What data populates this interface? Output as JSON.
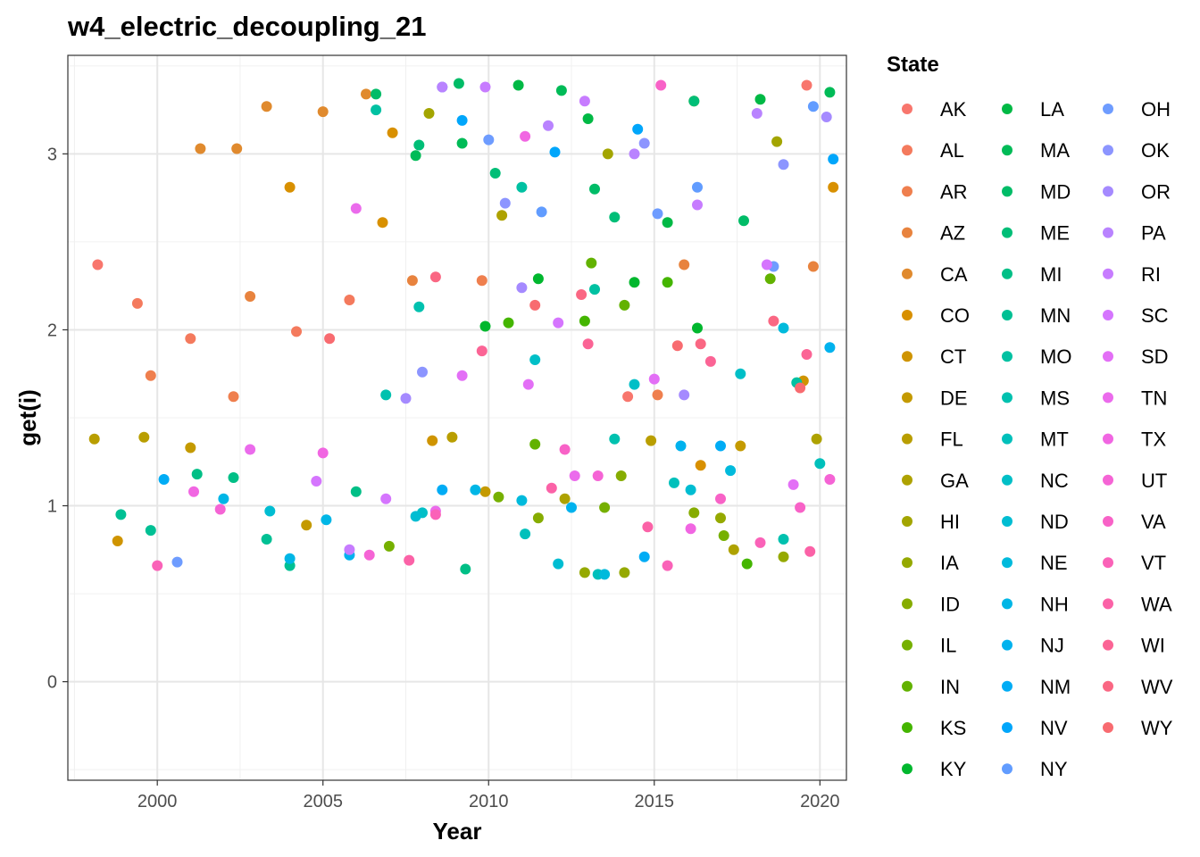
{
  "chart_data": {
    "type": "scatter",
    "title": "w4_electric_decoupling_21",
    "xlabel": "Year",
    "ylabel": "get(i)",
    "xlim": [
      1997.3,
      2020.8
    ],
    "ylim": [
      -0.56,
      3.56
    ],
    "x_ticks": [
      2000,
      2005,
      2010,
      2015,
      2020
    ],
    "y_ticks": [
      0,
      1,
      2,
      3
    ],
    "grid": true,
    "legend": {
      "title": "State",
      "placement": "right"
    },
    "series": [
      {
        "name": "AK",
        "color": "#F8766D",
        "x": [
          1998.2,
          2014.2,
          2019.6
        ],
        "y": [
          2.37,
          1.62,
          3.39
        ]
      },
      {
        "name": "AL",
        "color": "#F47A5D",
        "x": [
          1999.4,
          2001.0,
          2004.2,
          2005.8
        ],
        "y": [
          2.15,
          1.95,
          1.99,
          2.17
        ]
      },
      {
        "name": "AR",
        "color": "#EF7F4E",
        "x": [
          1999.8,
          2002.3,
          2009.8,
          2015.1
        ],
        "y": [
          1.74,
          1.62,
          2.28,
          1.63
        ]
      },
      {
        "name": "AZ",
        "color": "#E8833E",
        "x": [
          2002.8,
          2007.7,
          2015.9,
          2019.8
        ],
        "y": [
          2.19,
          2.28,
          2.37,
          2.36
        ]
      },
      {
        "name": "CA",
        "color": "#E08A2E",
        "x": [
          2001.3,
          2002.4,
          2003.3,
          2005.0,
          2006.3
        ],
        "y": [
          3.03,
          3.03,
          3.27,
          3.24,
          3.34
        ]
      },
      {
        "name": "CO",
        "color": "#D89000",
        "x": [
          2004.0,
          2006.8,
          2007.1,
          2016.4,
          2020.4
        ],
        "y": [
          2.81,
          2.61,
          3.12,
          1.23,
          2.81
        ]
      },
      {
        "name": "CT",
        "color": "#CF9400",
        "x": [
          1998.8,
          2008.3,
          2019.5
        ],
        "y": [
          0.8,
          1.37,
          1.71
        ]
      },
      {
        "name": "DE",
        "color": "#C49A00",
        "x": [
          2001.0,
          2004.5,
          2009.9,
          2017.6
        ],
        "y": [
          1.33,
          0.89,
          1.08,
          1.34
        ]
      },
      {
        "name": "FL",
        "color": "#B99E00",
        "x": [
          1998.1,
          1999.6,
          2008.9,
          2014.9
        ],
        "y": [
          1.38,
          1.39,
          1.39,
          1.37
        ]
      },
      {
        "name": "GA",
        "color": "#AEA200",
        "x": [
          2010.4,
          2012.3,
          2017.4,
          2019.9
        ],
        "y": [
          2.65,
          1.04,
          0.75,
          1.38
        ]
      },
      {
        "name": "HI",
        "color": "#A3A500",
        "x": [
          2008.2,
          2013.6,
          2016.2,
          2018.7
        ],
        "y": [
          3.23,
          3.0,
          3.3,
          3.07
        ]
      },
      {
        "name": "IA",
        "color": "#95A900",
        "x": [
          2012.9,
          2014.1,
          2017.0,
          2018.9
        ],
        "y": [
          0.62,
          0.62,
          0.93,
          0.71
        ]
      },
      {
        "name": "ID",
        "color": "#86AC00",
        "x": [
          2011.5,
          2014.0,
          2016.2
        ],
        "y": [
          0.93,
          1.17,
          0.96
        ]
      },
      {
        "name": "IL",
        "color": "#76B000",
        "x": [
          2007.0,
          2010.3,
          2013.5,
          2017.1
        ],
        "y": [
          0.77,
          1.05,
          0.99,
          0.83
        ]
      },
      {
        "name": "IN",
        "color": "#62B200",
        "x": [
          2011.4,
          2013.1,
          2014.1,
          2018.5
        ],
        "y": [
          1.35,
          2.38,
          2.14,
          2.29
        ]
      },
      {
        "name": "KS",
        "color": "#44B500",
        "x": [
          2010.6,
          2012.9,
          2015.4,
          2017.8
        ],
        "y": [
          2.04,
          2.05,
          2.27,
          0.67
        ]
      },
      {
        "name": "KY",
        "color": "#00B72E",
        "x": [
          2009.9,
          2011.5,
          2014.4,
          2016.3
        ],
        "y": [
          2.02,
          2.29,
          2.27,
          2.01
        ]
      },
      {
        "name": "LA",
        "color": "#00B945",
        "x": [
          2010.9,
          2013.0,
          2015.4,
          2018.2
        ],
        "y": [
          3.39,
          3.2,
          2.61,
          3.31
        ]
      },
      {
        "name": "MA",
        "color": "#00BB57",
        "x": [
          2007.8,
          2009.2,
          2012.2,
          2020.3
        ],
        "y": [
          2.99,
          3.06,
          3.36,
          3.35
        ]
      },
      {
        "name": "MD",
        "color": "#00BC67",
        "x": [
          2006.6,
          2009.1,
          2013.2,
          2017.7
        ],
        "y": [
          3.34,
          3.4,
          2.8,
          2.62
        ]
      },
      {
        "name": "ME",
        "color": "#00BE77",
        "x": [
          2007.9,
          2010.2,
          2013.8,
          2016.2
        ],
        "y": [
          3.05,
          2.89,
          2.64,
          3.3
        ]
      },
      {
        "name": "MI",
        "color": "#00BF86",
        "x": [
          2001.2,
          2002.3,
          2006.0,
          2009.3
        ],
        "y": [
          1.18,
          1.16,
          1.08,
          0.64
        ]
      },
      {
        "name": "MN",
        "color": "#00C094",
        "x": [
          1998.9,
          1999.8,
          2003.3,
          2004.0
        ],
        "y": [
          0.95,
          0.86,
          0.81,
          0.66
        ]
      },
      {
        "name": "MO",
        "color": "#00C1A2",
        "x": [
          2006.6,
          2011.0,
          2013.2,
          2019.3
        ],
        "y": [
          3.25,
          2.81,
          2.23,
          1.7
        ]
      },
      {
        "name": "MS",
        "color": "#00C1AF",
        "x": [
          2006.9,
          2007.9,
          2013.8,
          2018.9
        ],
        "y": [
          1.63,
          2.13,
          1.38,
          0.81
        ]
      },
      {
        "name": "MT",
        "color": "#00C0BB",
        "x": [
          2011.1,
          2013.3,
          2015.6,
          2020.0
        ],
        "y": [
          0.84,
          0.61,
          1.13,
          1.24
        ]
      },
      {
        "name": "NC",
        "color": "#00BFC7",
        "x": [
          2008.0,
          2011.4,
          2014.4,
          2017.6
        ],
        "y": [
          0.96,
          1.83,
          1.69,
          1.75
        ]
      },
      {
        "name": "ND",
        "color": "#00BDD2",
        "x": [
          2003.4,
          2007.8,
          2012.1,
          2016.1
        ],
        "y": [
          0.97,
          0.94,
          0.67,
          1.09
        ]
      },
      {
        "name": "NE",
        "color": "#00BADC",
        "x": [
          2011.0,
          2013.5,
          2017.3,
          2018.9
        ],
        "y": [
          1.03,
          0.61,
          1.2,
          2.01
        ]
      },
      {
        "name": "NH",
        "color": "#00B6E6",
        "x": [
          2002.0,
          2004.0,
          2005.1,
          2009.6
        ],
        "y": [
          1.04,
          0.7,
          0.92,
          1.09
        ]
      },
      {
        "name": "NJ",
        "color": "#00B2EE",
        "x": [
          2005.8,
          2012.5,
          2015.8,
          2020.3
        ],
        "y": [
          0.72,
          0.99,
          1.34,
          1.9
        ]
      },
      {
        "name": "NM",
        "color": "#00ACF5",
        "x": [
          2000.2,
          2008.6,
          2014.7,
          2017.0
        ],
        "y": [
          1.15,
          1.09,
          0.71,
          1.34
        ]
      },
      {
        "name": "NV",
        "color": "#00A6FB",
        "x": [
          2009.2,
          2012.0,
          2014.5,
          2020.4
        ],
        "y": [
          3.19,
          3.01,
          3.14,
          2.97
        ]
      },
      {
        "name": "NY",
        "color": "#619CFF",
        "x": [
          2008.6,
          2011.6,
          2016.3,
          2019.8
        ],
        "y": [
          3.38,
          2.67,
          2.81,
          3.27
        ]
      },
      {
        "name": "OH",
        "color": "#6E9CFF",
        "x": [
          2000.6,
          2010.0,
          2015.1,
          2018.6
        ],
        "y": [
          0.68,
          3.08,
          2.66,
          2.36
        ]
      },
      {
        "name": "OK",
        "color": "#8C95FF",
        "x": [
          2008.0,
          2010.5,
          2014.7,
          2018.9
        ],
        "y": [
          1.76,
          2.72,
          3.06,
          2.94
        ]
      },
      {
        "name": "OR",
        "color": "#A58AFF",
        "x": [
          2007.5,
          2011.0,
          2015.9,
          2020.2
        ],
        "y": [
          1.61,
          2.24,
          1.63,
          3.21
        ]
      },
      {
        "name": "PA",
        "color": "#B983FF",
        "x": [
          2008.6,
          2011.8,
          2014.4,
          2018.1
        ],
        "y": [
          3.38,
          3.16,
          3.0,
          3.23
        ]
      },
      {
        "name": "RI",
        "color": "#C77CFF",
        "x": [
          2005.8,
          2009.9,
          2012.9,
          2016.3
        ],
        "y": [
          0.75,
          3.38,
          3.3,
          2.71
        ]
      },
      {
        "name": "SC",
        "color": "#D575FE",
        "x": [
          2004.8,
          2006.9,
          2012.1,
          2018.4
        ],
        "y": [
          1.14,
          1.04,
          2.04,
          2.37
        ]
      },
      {
        "name": "SD",
        "color": "#E36FF6",
        "x": [
          2009.2,
          2011.2,
          2015.0,
          2019.2
        ],
        "y": [
          1.74,
          1.69,
          1.72,
          1.12
        ]
      },
      {
        "name": "TN",
        "color": "#EB6BEC",
        "x": [
          2002.8,
          2006.0,
          2008.4,
          2012.6
        ],
        "y": [
          1.32,
          2.69,
          0.97,
          1.17
        ]
      },
      {
        "name": "TX",
        "color": "#F166E2",
        "x": [
          2001.1,
          2005.0,
          2011.1,
          2016.1
        ],
        "y": [
          1.08,
          1.3,
          3.1,
          0.87
        ]
      },
      {
        "name": "UT",
        "color": "#F564D5",
        "x": [
          2001.9,
          2006.4,
          2013.3,
          2020.3
        ],
        "y": [
          0.98,
          0.72,
          1.17,
          1.15
        ]
      },
      {
        "name": "VA",
        "color": "#F862C7",
        "x": [
          2012.3,
          2015.2,
          2017.0,
          2019.4
        ],
        "y": [
          1.32,
          3.39,
          1.04,
          0.99
        ]
      },
      {
        "name": "VT",
        "color": "#FA62B8",
        "x": [
          2000.0,
          2008.4,
          2015.4,
          2018.2
        ],
        "y": [
          0.66,
          0.95,
          0.66,
          0.79
        ]
      },
      {
        "name": "WA",
        "color": "#FB62A7",
        "x": [
          2007.6,
          2011.9,
          2014.8,
          2019.7
        ],
        "y": [
          0.69,
          1.1,
          0.88,
          0.74
        ]
      },
      {
        "name": "WI",
        "color": "#FB6495",
        "x": [
          2009.8,
          2013.0,
          2016.7,
          2019.6
        ],
        "y": [
          1.88,
          1.92,
          1.82,
          1.86
        ]
      },
      {
        "name": "WV",
        "color": "#FA6783",
        "x": [
          2008.4,
          2012.8,
          2016.4,
          2018.6
        ],
        "y": [
          2.3,
          2.2,
          1.92,
          2.05
        ]
      },
      {
        "name": "WY",
        "color": "#F86B70",
        "x": [
          2005.2,
          2011.4,
          2015.7,
          2019.4
        ],
        "y": [
          1.95,
          2.14,
          1.91,
          1.67
        ]
      }
    ]
  }
}
